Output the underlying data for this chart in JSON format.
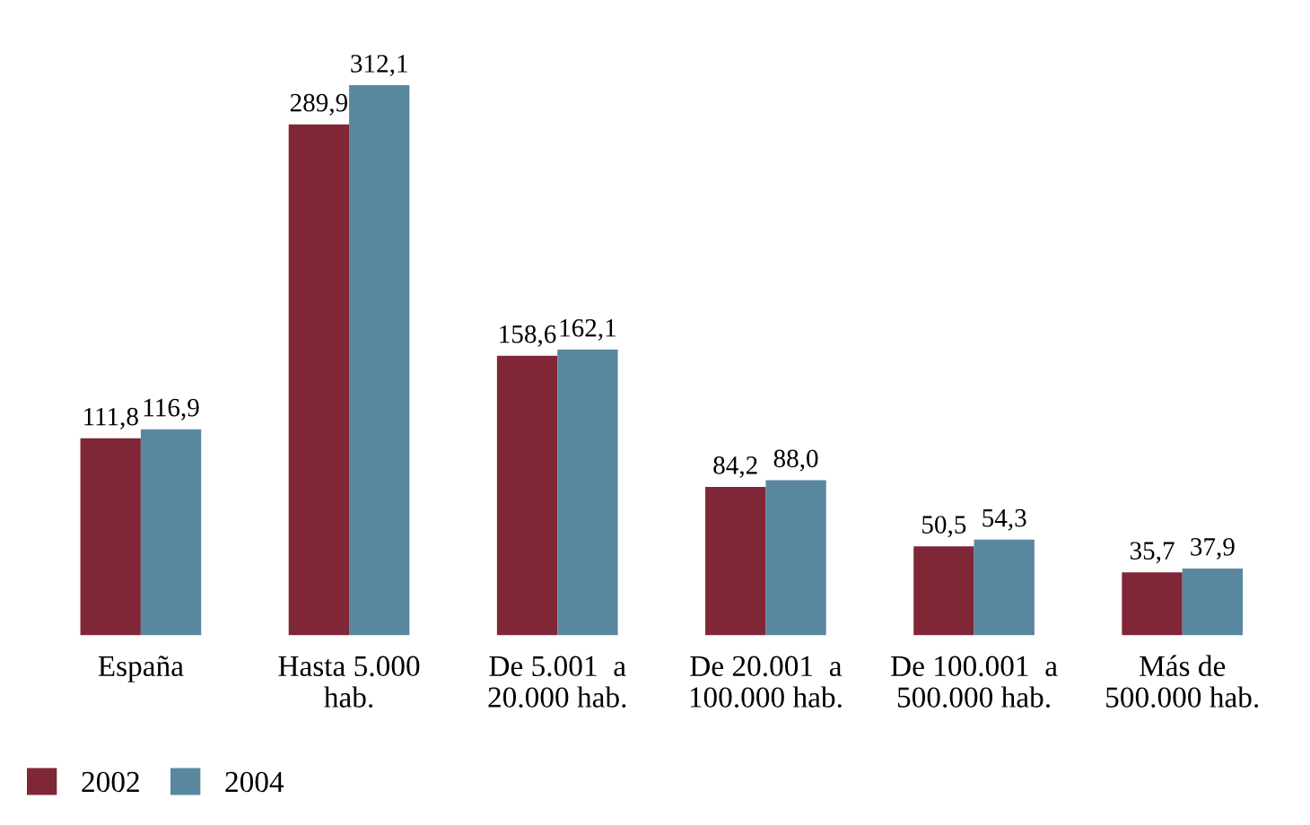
{
  "chart_data": {
    "type": "bar",
    "categories": [
      "España",
      "Hasta 5.000\nhab.",
      "De 5.001  a\n20.000 hab.",
      "De 20.001  a\n100.000 hab.",
      "De 100.001  a\n500.000 hab.",
      "Más de\n500.000 hab."
    ],
    "series": [
      {
        "name": "2002",
        "color": "#7f2637",
        "values": [
          111.8,
          289.9,
          158.6,
          84.2,
          50.5,
          35.7
        ],
        "value_labels": [
          "111,8",
          "289,9",
          "158,6",
          "84,2",
          "50,5",
          "35,7"
        ]
      },
      {
        "name": "2004",
        "color": "#5a87a0",
        "values": [
          116.9,
          312.1,
          162.1,
          88.0,
          54.3,
          37.9
        ],
        "value_labels": [
          "116,9",
          "312,1",
          "162,1",
          "88,0",
          "54,3",
          "37,9"
        ]
      }
    ],
    "legend": "bottom left",
    "grid": false
  }
}
